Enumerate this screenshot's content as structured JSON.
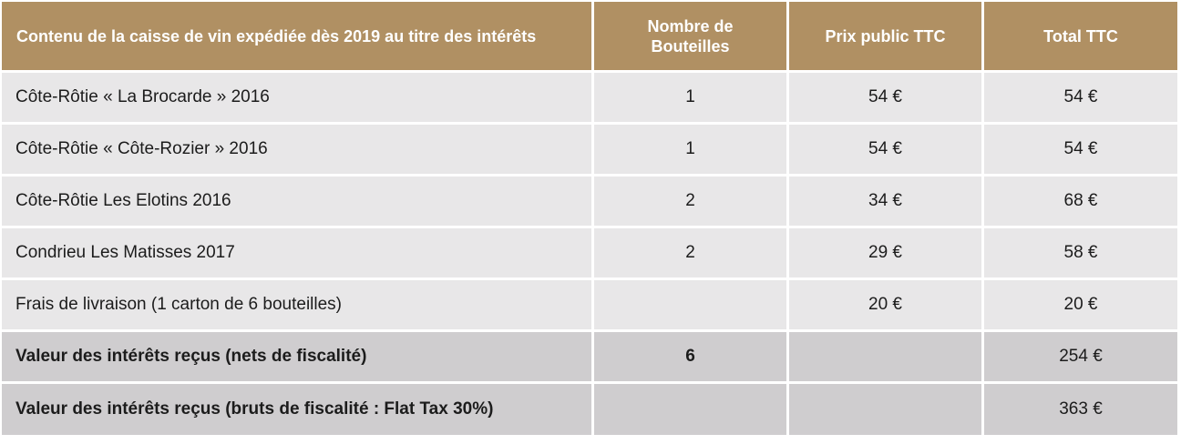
{
  "colors": {
    "header_bg": "#b09063",
    "row_bg": "#e8e7e8",
    "summary_bg": "#cfcdcf"
  },
  "table": {
    "headers": [
      "Contenu de la caisse de vin expédiée dès 2019 au titre des intérêts",
      "Nombre de Bouteilles",
      "Prix public TTC",
      "Total TTC"
    ],
    "rows": [
      {
        "item": "Côte-Rôtie « La Brocarde » 2016",
        "qty": "1",
        "price": "54 €",
        "total": "54 €"
      },
      {
        "item": "Côte-Rôtie « Côte-Rozier » 2016",
        "qty": "1",
        "price": "54 €",
        "total": "54 €"
      },
      {
        "item": "Côte-Rôtie Les Elotins 2016",
        "qty": "2",
        "price": "34 €",
        "total": "68 €"
      },
      {
        "item": "Condrieu Les Matisses 2017",
        "qty": "2",
        "price": "29 €",
        "total": "58 €"
      },
      {
        "item": "Frais de livraison (1 carton de 6 bouteilles)",
        "qty": "",
        "price": "20 €",
        "total": "20 €"
      }
    ],
    "summary": [
      {
        "item": "Valeur des intérêts reçus (nets de fiscalité)",
        "qty": "6",
        "price": "",
        "total": "254 €"
      },
      {
        "item": "Valeur des intérêts reçus (bruts de fiscalité  : Flat Tax 30%)",
        "qty": "",
        "price": "",
        "total": "363 €"
      }
    ]
  }
}
